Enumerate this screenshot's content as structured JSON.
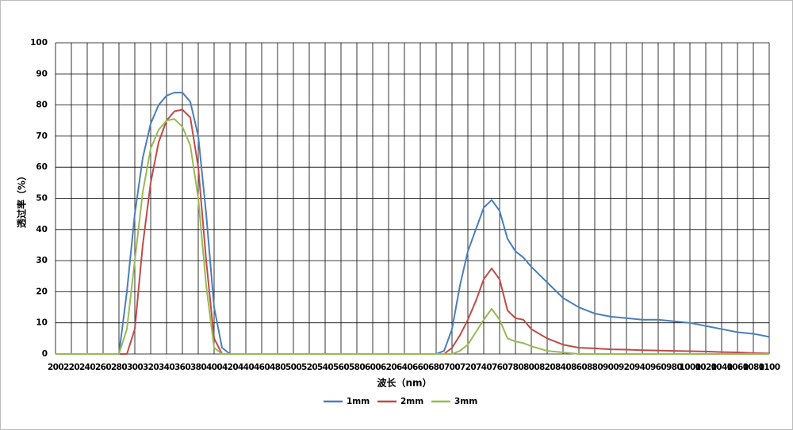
{
  "chart_data": {
    "type": "line",
    "xlabel": "波长（nm）",
    "ylabel": "透过率（%）",
    "x": [
      200,
      280,
      290,
      300,
      310,
      320,
      330,
      340,
      350,
      360,
      370,
      380,
      390,
      400,
      410,
      420,
      680,
      690,
      700,
      710,
      720,
      730,
      740,
      750,
      760,
      770,
      780,
      790,
      800,
      820,
      840,
      860,
      880,
      900,
      920,
      940,
      960,
      980,
      1000,
      1020,
      1040,
      1060,
      1080,
      1100
    ],
    "series": [
      {
        "name": "1mm",
        "color": "#4a7ebb",
        "values": [
          0,
          0,
          20,
          45,
          63,
          74,
          80,
          83,
          84,
          84,
          81,
          70,
          45,
          15,
          2,
          0,
          0,
          1,
          8,
          22,
          33,
          40,
          47,
          49.5,
          46,
          37,
          33,
          31,
          28,
          23,
          18,
          15,
          13,
          12,
          11.5,
          11,
          11,
          10.5,
          10,
          9,
          8,
          7,
          6.5,
          5.5
        ]
      },
      {
        "name": "2mm",
        "color": "#be4b48",
        "values": [
          0,
          0,
          0,
          8,
          35,
          55,
          68,
          75,
          78,
          78.5,
          76,
          60,
          30,
          5,
          0,
          0,
          0,
          0,
          2,
          6,
          11,
          17,
          24,
          27.5,
          24,
          14,
          11.5,
          11,
          8,
          5,
          3,
          2,
          1.8,
          1.5,
          1.4,
          1.2,
          1.1,
          1,
          0.9,
          0.8,
          0.6,
          0.5,
          0.3,
          0.2
        ]
      },
      {
        "name": "3mm",
        "color": "#98b954",
        "values": [
          0,
          0,
          8,
          30,
          52,
          66,
          72,
          75,
          75.5,
          73,
          67,
          50,
          22,
          2,
          0,
          0,
          0,
          0,
          0,
          1,
          3,
          7,
          11,
          14.5,
          11,
          5,
          4,
          3.5,
          2.5,
          1,
          0.5,
          0,
          0,
          0,
          0,
          0,
          0,
          0,
          0,
          0,
          0,
          0,
          0,
          0
        ]
      }
    ],
    "xlim": [
      200,
      1100
    ],
    "xticks": [
      200,
      220,
      240,
      260,
      280,
      300,
      320,
      340,
      360,
      380,
      400,
      420,
      440,
      460,
      480,
      500,
      520,
      540,
      560,
      580,
      600,
      620,
      640,
      660,
      680,
      700,
      720,
      740,
      760,
      780,
      800,
      820,
      840,
      860,
      880,
      900,
      920,
      940,
      960,
      980,
      1000,
      1020,
      1040,
      1060,
      1080,
      1100
    ],
    "ylim": [
      0,
      100
    ],
    "yticks": [
      0,
      10,
      20,
      30,
      40,
      50,
      60,
      70,
      80,
      90,
      100
    ],
    "grid": true,
    "legend": "bottom"
  }
}
